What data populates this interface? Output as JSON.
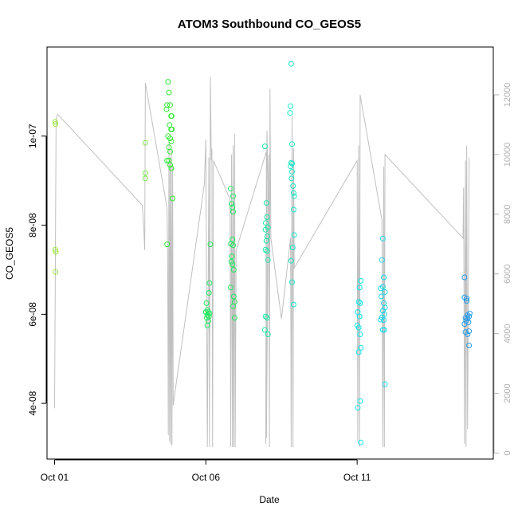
{
  "chart_data": {
    "type": "scatter",
    "title": "ATOM3 Southbound CO_GEOS5",
    "xlabel": "Date",
    "ylabel": "CO_GEOS5",
    "xlim": [
      -0.25,
      14.5
    ],
    "ylim": [
      2.75e-08,
      1.2e-07
    ],
    "y2lim": [
      -200,
      13600
    ],
    "x_ticks": [
      {
        "value": 0,
        "label": "Oct 01"
      },
      {
        "value": 5,
        "label": "Oct 06"
      },
      {
        "value": 10,
        "label": "Oct 11"
      }
    ],
    "y_ticks": [
      {
        "value": 4e-08,
        "label": "4e-08"
      },
      {
        "value": 6e-08,
        "label": "6e-08"
      },
      {
        "value": 8e-08,
        "label": "8e-08"
      },
      {
        "value": 1e-07,
        "label": "1e-07"
      }
    ],
    "y2_ticks": [
      {
        "value": 0,
        "label": "0"
      },
      {
        "value": 2000,
        "label": "2000"
      },
      {
        "value": 4000,
        "label": "4000"
      },
      {
        "value": 6000,
        "label": "6000"
      },
      {
        "value": 8000,
        "label": "8000"
      },
      {
        "value": 10000,
        "label": "10000"
      },
      {
        "value": 12000,
        "label": "12000"
      }
    ],
    "grid": false,
    "colors": {
      "altitude_line": "#c0c0c0",
      "points_day1": "#9be83a",
      "points_day4": "#7ce84a",
      "points_day5": "#33e833",
      "points_day6": "#1de85a",
      "points_day8": "#18e8a8",
      "points_day9": "#18e8c8",
      "points_day11": "#10e8e8",
      "points_day12": "#1cd8e8",
      "points_day14": "#2a9ce8"
    },
    "series": [
      {
        "color_key": "points_day1",
        "points": [
          [
            0.02,
            1.032e-07
          ],
          [
            0.03,
            1.027e-07
          ],
          [
            0.02,
            7.45e-08
          ],
          [
            0.04,
            7.4e-08
          ],
          [
            0.03,
            6.95e-08
          ]
        ]
      },
      {
        "color_key": "points_day4",
        "points": [
          [
            3.0,
            9.85e-08
          ],
          [
            3.0,
            9.17e-08
          ],
          [
            3.0,
            9.05e-08
          ]
        ]
      },
      {
        "color_key": "points_day5",
        "points": [
          [
            3.75,
            1.122e-07
          ],
          [
            3.78,
            1.098e-07
          ],
          [
            3.72,
            1.07e-07
          ],
          [
            3.82,
            1.07e-07
          ],
          [
            3.7,
            1.06e-07
          ],
          [
            3.85,
            1.045e-07
          ],
          [
            3.87,
            1.045e-07
          ],
          [
            3.8,
            1.025e-07
          ],
          [
            3.85,
            1.015e-07
          ],
          [
            3.88,
            1.015e-07
          ],
          [
            3.75,
            1e-07
          ],
          [
            3.82,
            9.95e-08
          ],
          [
            3.86,
            9.88e-08
          ],
          [
            3.78,
            9.75e-08
          ],
          [
            3.82,
            9.65e-08
          ],
          [
            3.72,
            9.45e-08
          ],
          [
            3.78,
            9.45e-08
          ],
          [
            3.82,
            9.35e-08
          ],
          [
            3.86,
            9.28e-08
          ],
          [
            3.9,
            8.6e-08
          ],
          [
            3.72,
            7.57e-08
          ]
        ]
      },
      {
        "color_key": "points_day6",
        "points": [
          [
            5.15,
            7.57e-08
          ],
          [
            5.12,
            6.7e-08
          ],
          [
            5.1,
            6.48e-08
          ],
          [
            5.02,
            6.25e-08
          ],
          [
            5.05,
            6.1e-08
          ],
          [
            5.0,
            6.05e-08
          ],
          [
            5.08,
            6.05e-08
          ],
          [
            5.12,
            6.02e-08
          ],
          [
            5.05,
            5.98e-08
          ],
          [
            5.1,
            5.95e-08
          ],
          [
            5.03,
            5.92e-08
          ],
          [
            5.08,
            5.85e-08
          ],
          [
            5.05,
            5.75e-08
          ],
          [
            5.82,
            8.82e-08
          ],
          [
            5.9,
            8.65e-08
          ],
          [
            5.85,
            8.48e-08
          ],
          [
            5.88,
            8.4e-08
          ],
          [
            5.9,
            8.3e-08
          ],
          [
            5.88,
            7.68e-08
          ],
          [
            5.83,
            7.58e-08
          ],
          [
            5.9,
            7.55e-08
          ],
          [
            5.86,
            7.3e-08
          ],
          [
            5.84,
            7.18e-08
          ],
          [
            5.88,
            7.12e-08
          ],
          [
            5.92,
            7e-08
          ],
          [
            5.82,
            6.6e-08
          ],
          [
            5.92,
            6.4e-08
          ],
          [
            5.95,
            6.28e-08
          ],
          [
            5.9,
            6.18e-08
          ],
          [
            5.95,
            5.92e-08
          ]
        ]
      },
      {
        "color_key": "points_day8",
        "points": [
          [
            6.95,
            9.77e-08
          ],
          [
            7.0,
            8.5e-08
          ],
          [
            7.02,
            8.18e-08
          ],
          [
            6.98,
            8.05e-08
          ],
          [
            7.05,
            7.95e-08
          ],
          [
            6.97,
            7.9e-08
          ],
          [
            7.03,
            7.75e-08
          ],
          [
            7.0,
            7.65e-08
          ],
          [
            6.97,
            7.45e-08
          ],
          [
            7.02,
            7.42e-08
          ],
          [
            7.05,
            7.22e-08
          ],
          [
            6.98,
            5.95e-08
          ],
          [
            7.02,
            5.92e-08
          ],
          [
            6.95,
            5.65e-08
          ],
          [
            7.05,
            5.55e-08
          ]
        ]
      },
      {
        "color_key": "points_day9",
        "points": [
          [
            7.82,
            1.162e-07
          ],
          [
            7.8,
            1.067e-07
          ],
          [
            7.78,
            1.052e-07
          ],
          [
            7.85,
            9.82e-08
          ],
          [
            7.82,
            9.4e-08
          ],
          [
            7.85,
            9.38e-08
          ],
          [
            7.8,
            9.32e-08
          ],
          [
            7.85,
            9.2e-08
          ],
          [
            7.83,
            9.05e-08
          ],
          [
            7.88,
            8.88e-08
          ],
          [
            7.9,
            8.72e-08
          ],
          [
            7.92,
            8.65e-08
          ],
          [
            7.9,
            8.35e-08
          ],
          [
            7.92,
            7.78e-08
          ],
          [
            7.87,
            7.5e-08
          ],
          [
            7.82,
            7.2e-08
          ],
          [
            7.85,
            6.72e-08
          ],
          [
            7.9,
            6.22e-08
          ]
        ]
      },
      {
        "color_key": "points_day11",
        "points": [
          [
            10.12,
            6.75e-08
          ],
          [
            10.08,
            6.6e-08
          ],
          [
            10.05,
            6.28e-08
          ],
          [
            10.1,
            6.25e-08
          ],
          [
            10.02,
            6.05e-08
          ],
          [
            10.08,
            5.95e-08
          ],
          [
            10.0,
            5.75e-08
          ],
          [
            10.05,
            5.7e-08
          ],
          [
            10.1,
            5.55e-08
          ],
          [
            10.12,
            5.25e-08
          ],
          [
            10.05,
            5.15e-08
          ],
          [
            10.1,
            4.05e-08
          ],
          [
            10.02,
            3.9e-08
          ],
          [
            10.12,
            3.12e-08
          ]
        ]
      },
      {
        "color_key": "points_day12",
        "points": [
          [
            10.85,
            7.7e-08
          ],
          [
            10.82,
            7.22e-08
          ],
          [
            10.88,
            6.83e-08
          ],
          [
            10.85,
            6.62e-08
          ],
          [
            10.78,
            6.58e-08
          ],
          [
            10.92,
            6.5e-08
          ],
          [
            10.8,
            6.4e-08
          ],
          [
            10.88,
            6.25e-08
          ],
          [
            10.92,
            6.15e-08
          ],
          [
            10.85,
            6.08e-08
          ],
          [
            10.9,
            6e-08
          ],
          [
            10.82,
            5.93e-08
          ],
          [
            10.78,
            5.88e-08
          ],
          [
            10.88,
            5.87e-08
          ],
          [
            10.85,
            5.65e-08
          ],
          [
            10.9,
            5.65e-08
          ],
          [
            10.92,
            4.43e-08
          ]
        ]
      },
      {
        "color_key": "points_day14",
        "points": [
          [
            13.55,
            6.83e-08
          ],
          [
            13.55,
            6.38e-08
          ],
          [
            13.62,
            6.35e-08
          ],
          [
            13.62,
            6.3e-08
          ],
          [
            13.72,
            6.02e-08
          ],
          [
            13.65,
            5.98e-08
          ],
          [
            13.7,
            5.95e-08
          ],
          [
            13.58,
            5.92e-08
          ],
          [
            13.65,
            5.9e-08
          ],
          [
            13.6,
            5.85e-08
          ],
          [
            13.68,
            5.82e-08
          ],
          [
            13.55,
            5.78e-08
          ],
          [
            13.7,
            5.62e-08
          ],
          [
            13.58,
            5.6e-08
          ],
          [
            13.65,
            5.55e-08
          ],
          [
            13.7,
            5.3e-08
          ]
        ]
      }
    ],
    "altitude_series": {
      "axis": "right",
      "color_key": "altitude_line",
      "points": [
        [
          0.0,
          1500
        ],
        [
          0.05,
          11200
        ],
        [
          0.1,
          11350
        ],
        [
          2.9,
          8300
        ],
        [
          2.95,
          7500
        ],
        [
          2.98,
          6800
        ],
        [
          3.0,
          12400
        ],
        [
          3.72,
          8200
        ],
        [
          3.74,
          6000
        ],
        [
          3.76,
          600
        ],
        [
          3.78,
          10500
        ],
        [
          3.8,
          400
        ],
        [
          3.82,
          9900
        ],
        [
          3.84,
          300
        ],
        [
          3.86,
          10200
        ],
        [
          3.88,
          250
        ],
        [
          3.9,
          9600
        ],
        [
          3.92,
          1600
        ],
        [
          4.95,
          9000
        ],
        [
          5.0,
          10500
        ],
        [
          5.05,
          200
        ],
        [
          5.1,
          9900
        ],
        [
          5.12,
          200
        ],
        [
          5.15,
          12600
        ],
        [
          5.18,
          9800
        ],
        [
          5.2,
          10200
        ],
        [
          5.22,
          200
        ],
        [
          5.25,
          9800
        ],
        [
          5.8,
          8500
        ],
        [
          5.82,
          200
        ],
        [
          5.85,
          10000
        ],
        [
          5.88,
          200
        ],
        [
          5.9,
          10300
        ],
        [
          5.92,
          200
        ],
        [
          5.95,
          10700
        ],
        [
          5.97,
          200
        ],
        [
          6.0,
          6800
        ],
        [
          7.0,
          10100
        ],
        [
          6.98,
          300
        ],
        [
          7.02,
          10800
        ],
        [
          7.05,
          9000
        ],
        [
          7.0,
          500
        ],
        [
          7.08,
          10000
        ],
        [
          7.1,
          200
        ],
        [
          7.12,
          12200
        ],
        [
          7.15,
          7200
        ],
        [
          7.5,
          4500
        ],
        [
          7.8,
          7200
        ],
        [
          7.82,
          200
        ],
        [
          7.85,
          11300
        ],
        [
          7.88,
          200
        ],
        [
          7.9,
          10200
        ],
        [
          7.92,
          6200
        ],
        [
          10.0,
          9800
        ],
        [
          10.02,
          400
        ],
        [
          10.05,
          10300
        ],
        [
          10.08,
          200
        ],
        [
          10.1,
          12000
        ],
        [
          10.82,
          7800
        ],
        [
          10.85,
          200
        ],
        [
          10.88,
          9600
        ],
        [
          10.9,
          200
        ],
        [
          10.92,
          10000
        ],
        [
          13.5,
          7200
        ],
        [
          13.52,
          8900
        ],
        [
          13.55,
          300
        ],
        [
          13.58,
          9800
        ],
        [
          13.6,
          200
        ],
        [
          13.62,
          10300
        ],
        [
          13.65,
          800
        ],
        [
          13.7,
          9900
        ]
      ]
    }
  }
}
